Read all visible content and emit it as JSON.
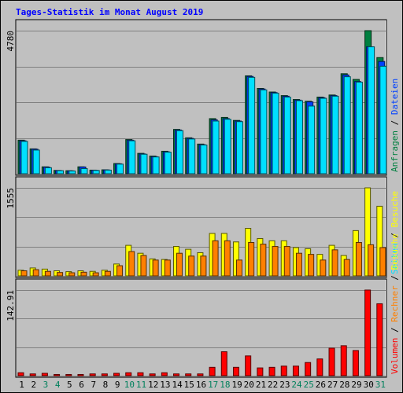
{
  "title": "Tages-Statistik im Monat August 2019",
  "colors": {
    "outer_bg": "#c0c0c0",
    "plot_bg": "#c0c0c0",
    "grid": "#808080",
    "frame_dark": "#000000",
    "frame_light": "#ffffff",
    "title": "#0000ff",
    "anfragen": "#008040",
    "dateien": "#0040ff",
    "seiten": "#00e0ff",
    "besuche": "#ffff00",
    "rechner": "#ff8000",
    "volumen": "#ff0000",
    "weekend_day": "#00805c",
    "weekday": "#000000"
  },
  "chart_data": {
    "type": "bar",
    "categories": [
      "1",
      "2",
      "3",
      "4",
      "5",
      "6",
      "7",
      "8",
      "9",
      "10",
      "11",
      "12",
      "13",
      "14",
      "15",
      "16",
      "17",
      "18",
      "19",
      "20",
      "21",
      "22",
      "23",
      "24",
      "25",
      "26",
      "27",
      "28",
      "29",
      "30",
      "31"
    ],
    "weekend_days": [
      "3",
      "4",
      "10",
      "11",
      "17",
      "18",
      "24",
      "25",
      "31"
    ],
    "panels": [
      {
        "name": "requests",
        "ymax_label": "4780",
        "ymax": 4780,
        "side_labels": [
          {
            "text": "Anfragen",
            "color": "#008040"
          },
          {
            "text": " / ",
            "color": "#000000"
          },
          {
            "text": "Dateien",
            "color": "#0040ff"
          }
        ],
        "series": [
          {
            "name": "Anfragen",
            "color": "#008040",
            "values": [
              1120,
              830,
              230,
              110,
              100,
              230,
              120,
              130,
              340,
              1140,
              680,
              590,
              750,
              1480,
              1200,
              990,
              1840,
              1880,
              1780,
              3270,
              2850,
              2730,
              2610,
              2480,
              2420,
              2560,
              2630,
              3340,
              3150,
              4780,
              3880
            ]
          },
          {
            "name": "Dateien",
            "color": "#0040ff",
            "values": [
              1100,
              820,
              220,
              105,
              95,
              225,
              115,
              125,
              330,
              1120,
              660,
              570,
              730,
              1460,
              1180,
              970,
              1800,
              1840,
              1760,
              3250,
              2830,
              2710,
              2590,
              2460,
              2400,
              2540,
              2610,
              3300,
              3080,
              4240,
              3750
            ]
          },
          {
            "name": "Seiten",
            "color": "#00e0ff",
            "values": [
              1080,
              790,
              200,
              100,
              90,
              170,
              110,
              120,
              320,
              1100,
              650,
              560,
              720,
              1440,
              1160,
              960,
              1760,
              1820,
              1740,
              3220,
              2800,
              2690,
              2560,
              2440,
              2260,
              2520,
              2590,
              3240,
              3060,
              4240,
              3590
            ]
          }
        ]
      },
      {
        "name": "visits",
        "ymax_label": "1555",
        "ymax": 1555,
        "side_labels": [
          {
            "text": "Seiten",
            "color": "#00e0ff"
          },
          {
            "text": " / ",
            "color": "#000000"
          },
          {
            "text": "Besuche",
            "color": "#ffff00"
          }
        ],
        "series": [
          {
            "name": "Besuche",
            "color": "#ffff00",
            "values": [
              100,
              140,
              120,
              90,
              75,
              90,
              80,
              100,
              210,
              540,
              400,
              300,
              290,
              520,
              470,
              410,
              750,
              750,
              600,
              840,
              660,
              620,
              620,
              500,
              480,
              380,
              540,
              360,
              800,
              1555,
              1230
            ]
          },
          {
            "name": "Rechner",
            "color": "#ff8000",
            "values": [
              90,
              110,
              80,
              60,
              55,
              65,
              55,
              80,
              180,
              430,
              360,
              280,
              280,
              400,
              350,
              350,
              620,
              620,
              280,
              590,
              560,
              520,
              520,
              400,
              380,
              280,
              460,
              290,
              590,
              550,
              500
            ]
          }
        ]
      },
      {
        "name": "volume",
        "ymax_label": "142.91",
        "ymax": 142.91,
        "side_labels": [
          {
            "text": "Volumen",
            "color": "#ff0000"
          },
          {
            "text": " / ",
            "color": "#000000"
          },
          {
            "text": "Rechner",
            "color": "#ff8000"
          },
          {
            "text": " / ",
            "color": "#000000"
          },
          {
            "text": "Besuche",
            "color": "#ffff00"
          }
        ],
        "series": [
          {
            "name": "Volumen",
            "color": "#ff0000",
            "values": [
              5,
              3,
              4,
              2,
              2,
              2,
              3,
              3,
              4,
              5,
              5,
              3,
              5,
              3,
              3,
              3,
              14,
              40,
              14,
              33,
              13,
              14,
              16,
              16,
              22,
              28,
              46,
              50,
              42,
              142.91,
              120
            ]
          }
        ]
      }
    ]
  }
}
